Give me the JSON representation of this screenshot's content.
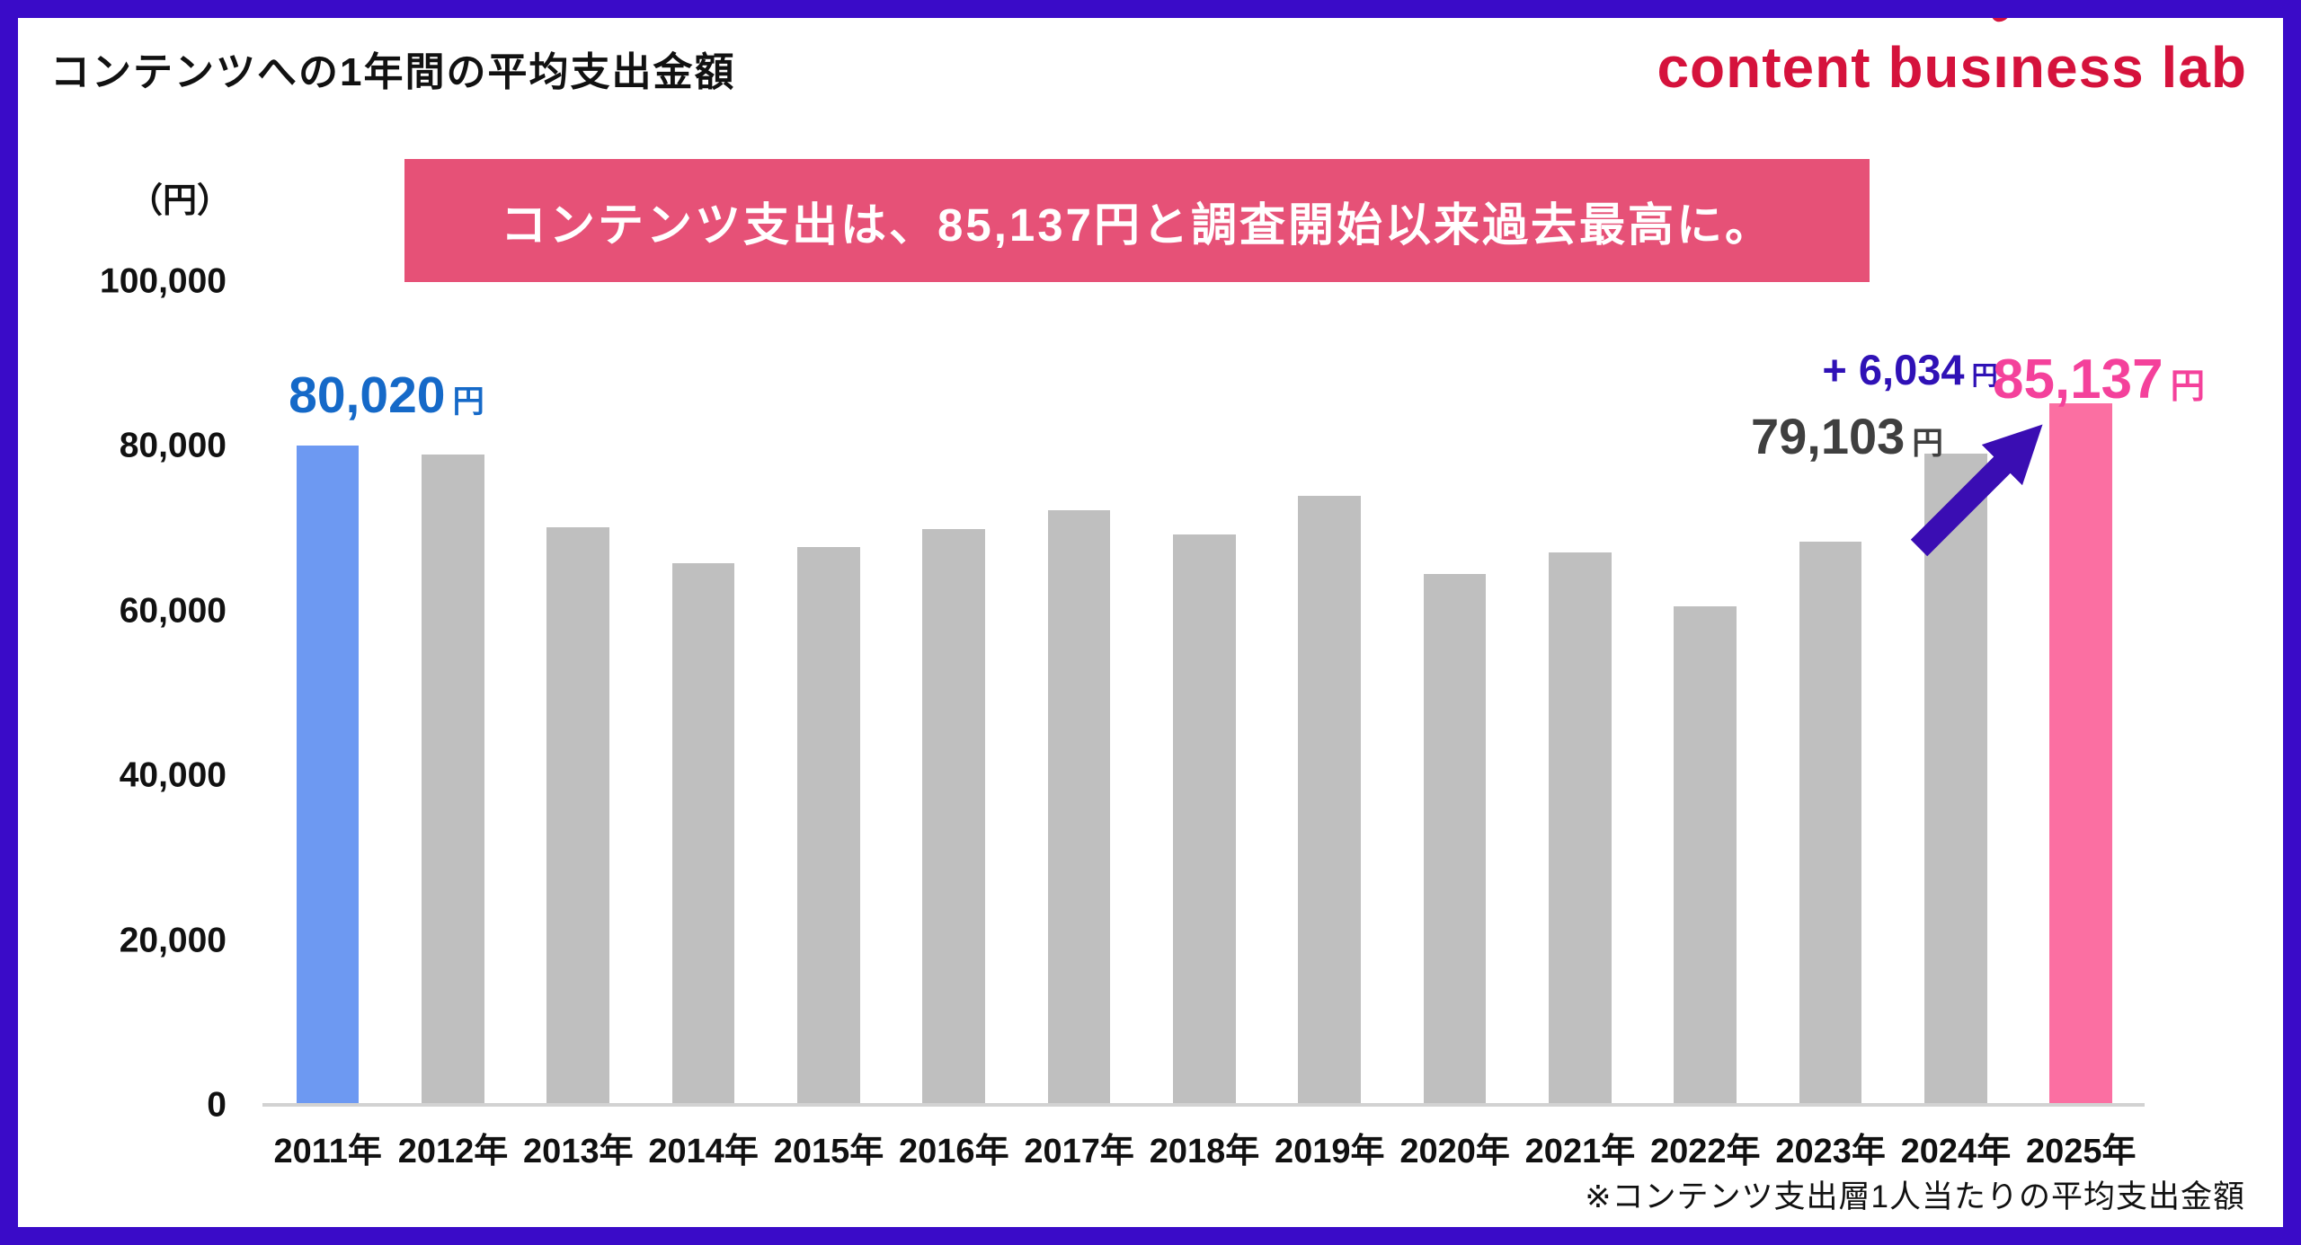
{
  "page": {
    "border_color": "#3A0BC8",
    "background": "#FFFFFF"
  },
  "header": {
    "title": "コンテンツへの1年間の平均支出金額",
    "logo": {
      "text": "content business lab",
      "pre": "content bus",
      "i_char": "ı",
      "post": "ness lab",
      "color": "#D5123C"
    }
  },
  "banner": {
    "text": "コンテンツ支出は、85,137円と調査開始以来過去最高に。",
    "bg": "#E65177",
    "text_color": "#FFFFFF"
  },
  "chart_data": {
    "type": "bar",
    "title": "コンテンツへの1年間の平均支出金額",
    "unit_label": "（円）",
    "categories": [
      "2011年",
      "2012年",
      "2013年",
      "2014年",
      "2015年",
      "2016年",
      "2017年",
      "2018年",
      "2019年",
      "2020年",
      "2021年",
      "2022年",
      "2023年",
      "2024年",
      "2025年"
    ],
    "values": [
      80020,
      79000,
      70100,
      65800,
      67700,
      69900,
      72200,
      69200,
      73900,
      64400,
      67100,
      60500,
      68400,
      79103,
      85137
    ],
    "bar_colors": [
      "#6D99F2",
      "#BFBFBF",
      "#BFBFBF",
      "#BFBFBF",
      "#BFBFBF",
      "#BFBFBF",
      "#BFBFBF",
      "#BFBFBF",
      "#BFBFBF",
      "#BFBFBF",
      "#BFBFBF",
      "#BFBFBF",
      "#BFBFBF",
      "#BFBFBF",
      "#FB6FA2"
    ],
    "ylim": [
      0,
      100000
    ],
    "yticks": [
      {
        "value": 0,
        "label": "0"
      },
      {
        "value": 20000,
        "label": "20,000"
      },
      {
        "value": 40000,
        "label": "40,000"
      },
      {
        "value": 60000,
        "label": "60,000"
      },
      {
        "value": 80000,
        "label": "80,000"
      },
      {
        "value": 100000,
        "label": "100,000"
      }
    ],
    "grid": false,
    "legend": false,
    "annotations": {
      "first": {
        "target": "2011年",
        "value": "80,020",
        "unit": "円",
        "color": "#1569C8"
      },
      "prev": {
        "target": "2024年",
        "value": "79,103",
        "unit": "円",
        "color": "#3F3F3F"
      },
      "diff": {
        "value": "+ 6,034",
        "unit": "円",
        "color": "#2F11B6"
      },
      "latest": {
        "target": "2025年",
        "value": "85,137",
        "unit": "円",
        "color": "#F4419B"
      }
    },
    "arrow_color": "#3A0DB3",
    "axis_line_color": "#D2D2D2"
  },
  "footnote": "※コンテンツ支出層1人当たりの平均支出金額"
}
